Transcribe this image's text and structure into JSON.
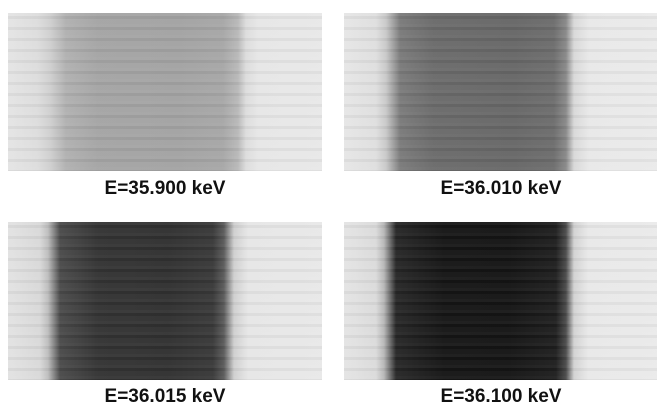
{
  "panels": [
    {
      "caption": "E=35.900 keV"
    },
    {
      "caption": "E=36.010 keV"
    },
    {
      "caption": "E=36.015 keV"
    },
    {
      "caption": "E=36.100 keV"
    }
  ]
}
